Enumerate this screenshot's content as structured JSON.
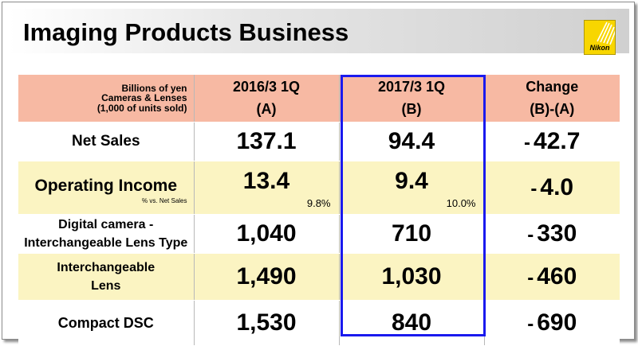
{
  "header": {
    "title": "Imaging Products Business",
    "logo_text": "Nikon"
  },
  "table": {
    "unit_line1": "Billions of yen",
    "unit_line2": "Cameras & Lenses",
    "unit_line3": "(1,000 of units sold)",
    "columns": [
      {
        "line1": "2016/3 1Q",
        "line2": "(A)"
      },
      {
        "line1": "2017/3 1Q",
        "line2": "(B)"
      },
      {
        "line1": "Change",
        "line2": "(B)-(A)"
      }
    ],
    "rows": [
      {
        "label": "Net Sales",
        "a": "137.1",
        "b": "94.4",
        "change": "42.7"
      },
      {
        "label": "Operating Income",
        "sub": "% vs. Net Sales",
        "a": "13.4",
        "a_pct": "9.8%",
        "b": "9.4",
        "b_pct": "10.0%",
        "change": "4.0"
      },
      {
        "label1": "Digital camera -",
        "label2": "Interchangeable Lens Type",
        "a": "1,040",
        "b": "710",
        "change": "330"
      },
      {
        "label1": "Interchangeable",
        "label2": "Lens",
        "a": "1,490",
        "b": "1,030",
        "change": "460"
      },
      {
        "label": "Compact DSC",
        "a": "1,530",
        "b": "840",
        "change": "690"
      }
    ],
    "minus_sign": "-",
    "colors": {
      "header_bg": "#f7b9a3",
      "alt_row_bg": "#fbf4c2",
      "highlight_border": "#1a1aee"
    }
  }
}
